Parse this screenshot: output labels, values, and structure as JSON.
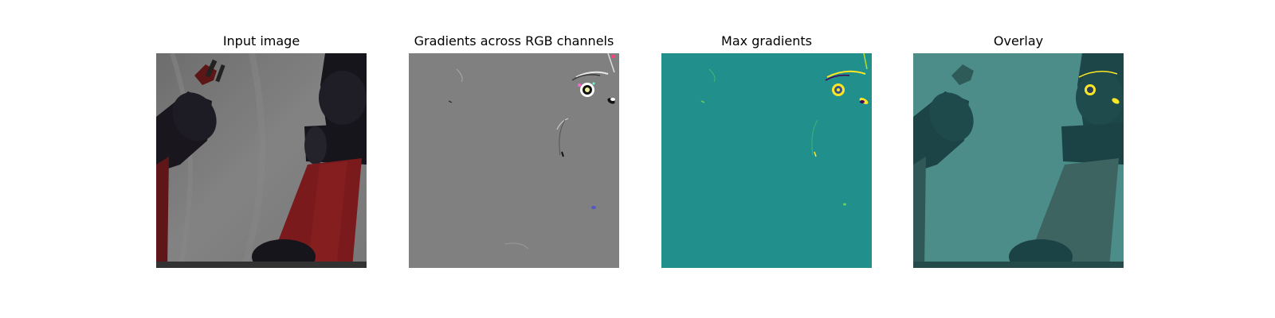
{
  "figure": {
    "panels": [
      {
        "id": "input",
        "title": "Input image"
      },
      {
        "id": "gradients",
        "title": "Gradients across RGB channels"
      },
      {
        "id": "max",
        "title": "Max gradients"
      },
      {
        "id": "overlay",
        "title": "Overlay"
      }
    ]
  },
  "colors": {
    "background": "#ffffff",
    "input_backdrop": "#8a8a8a",
    "robot_dark": "#1d1a22",
    "robot_red": "#8b1e20",
    "gradient_gray": "#808080",
    "viridis_teal": "#21908c",
    "viridis_yellow": "#fde725",
    "viridis_purple": "#440154",
    "overlay_teal": "#4a8c88",
    "overlay_dark": "#1e4a4c"
  }
}
